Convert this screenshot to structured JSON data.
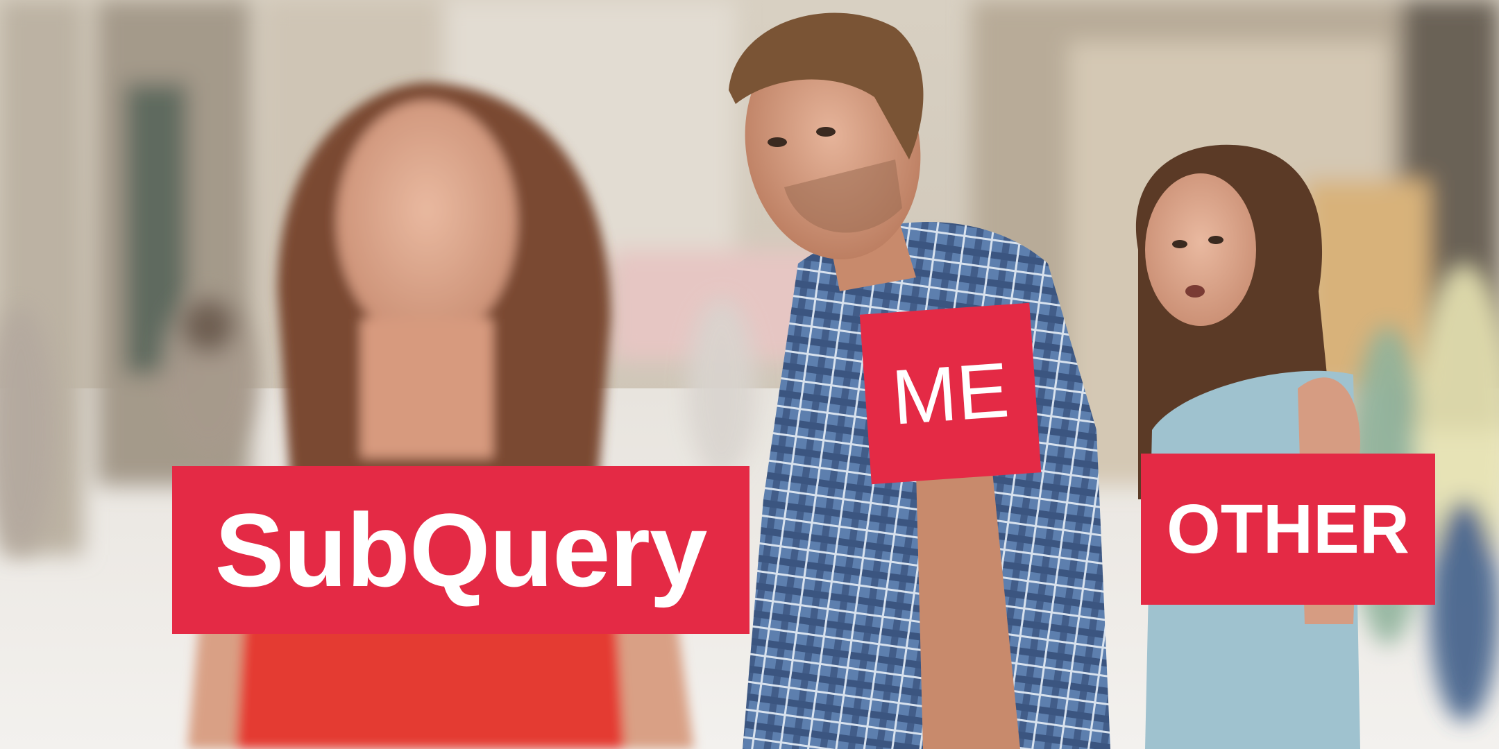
{
  "labels": {
    "subquery": "SubQuery",
    "me": "ME",
    "other": "OTHER"
  },
  "colors": {
    "label_bg": "#e42a45",
    "label_text": "#ffffff"
  }
}
